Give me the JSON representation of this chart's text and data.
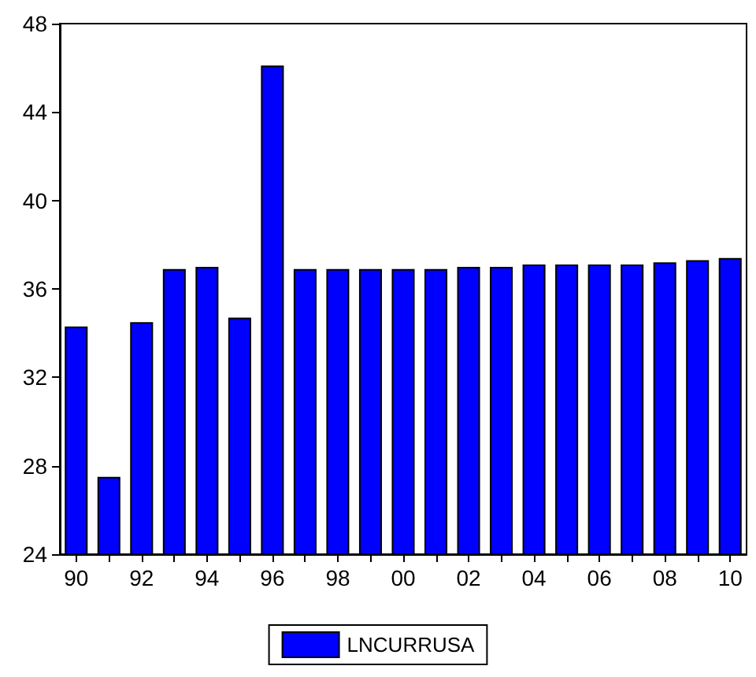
{
  "chart_data": {
    "type": "bar",
    "categories": [
      "90",
      null,
      "92",
      null,
      "94",
      null,
      "96",
      null,
      "98",
      null,
      "00",
      null,
      "02",
      null,
      "04",
      null,
      "06",
      null,
      "08",
      null,
      "10"
    ],
    "series": [
      {
        "name": "LNCURRUSA",
        "color": "#0000ff",
        "values": [
          34.3,
          27.5,
          34.5,
          36.9,
          37.0,
          34.7,
          46.1,
          36.9,
          36.9,
          36.9,
          36.9,
          36.9,
          37.0,
          37.0,
          37.1,
          37.1,
          37.1,
          37.1,
          37.2,
          37.3,
          37.4
        ]
      }
    ],
    "ylim": [
      24,
      48
    ],
    "yticks": [
      24,
      28,
      32,
      36,
      40,
      44,
      48
    ],
    "grid": false,
    "legend": "bottom"
  }
}
